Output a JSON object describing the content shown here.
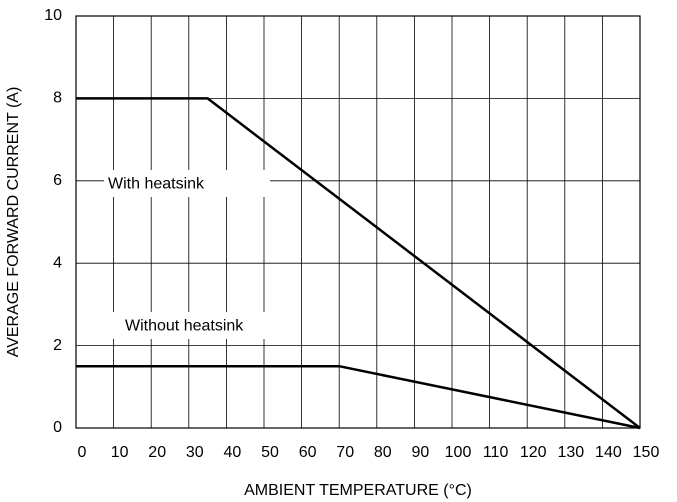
{
  "chart_data": {
    "type": "line",
    "x_label": "AMBIENT TEMPERATURE (°C)",
    "y_label": "AVERAGE FORWARD CURRENT (A)",
    "series": [
      {
        "name": "With heatsink",
        "color": "#000000",
        "x": [
          0,
          35,
          150
        ],
        "values": [
          8,
          8,
          0
        ]
      },
      {
        "name": "Without heatsink",
        "color": "#000000",
        "x": [
          0,
          70,
          150
        ],
        "values": [
          1.5,
          1.5,
          0
        ]
      }
    ],
    "xlim": [
      0,
      150
    ],
    "xticks": [
      0,
      10,
      20,
      30,
      40,
      50,
      60,
      70,
      80,
      90,
      100,
      110,
      120,
      130,
      140,
      150
    ],
    "ylim": [
      0,
      10
    ],
    "yticks": [
      0,
      2,
      4,
      6,
      8,
      10
    ],
    "grid": true
  }
}
